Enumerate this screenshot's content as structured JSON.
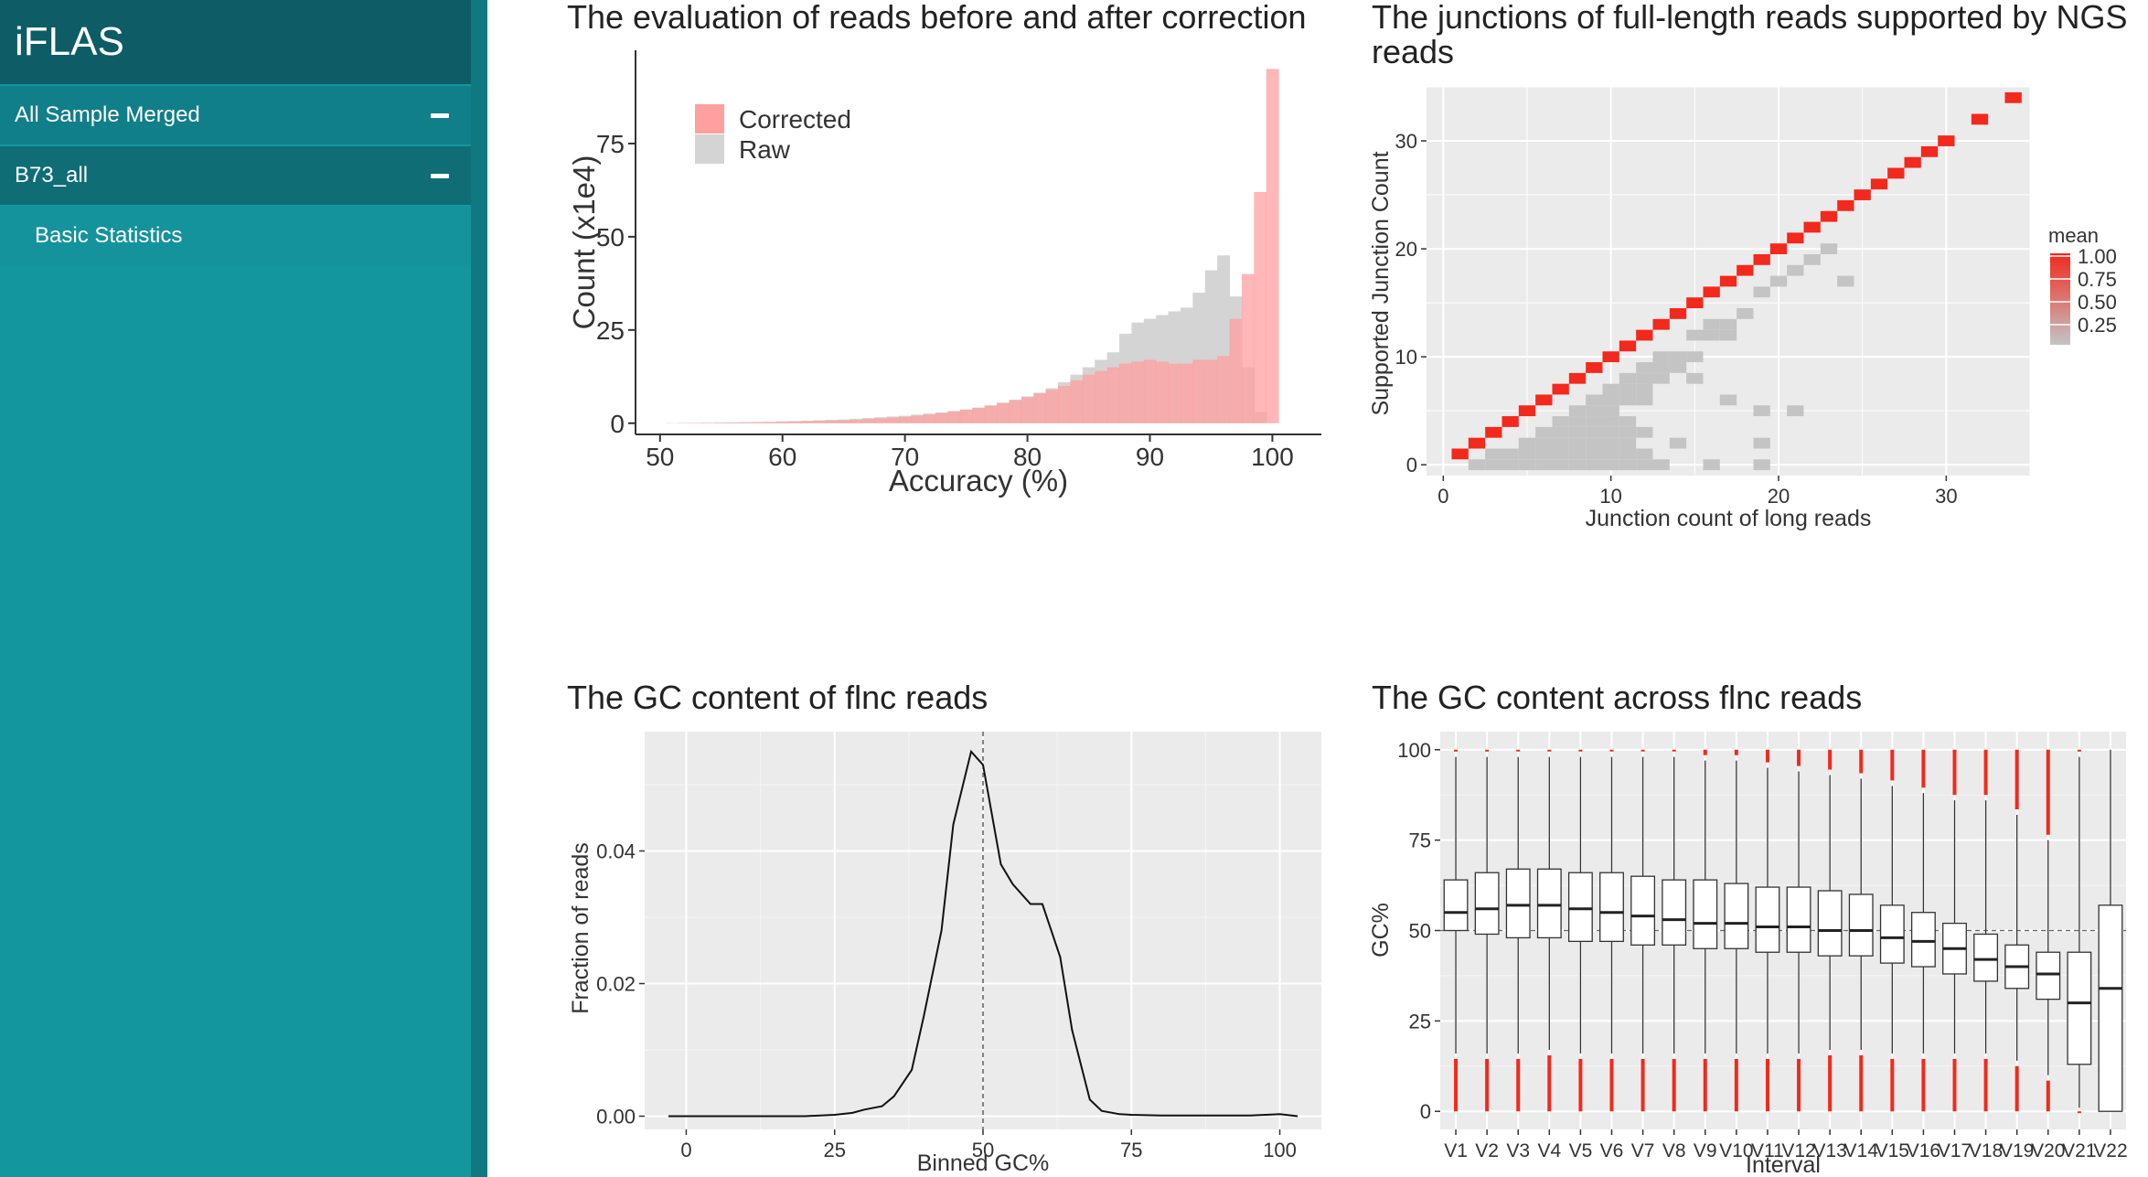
{
  "sidebar": {
    "brand": "iFLAS",
    "items": [
      {
        "label": "All Sample Merged",
        "icon": "minus-icon"
      },
      {
        "label": "B73_all",
        "icon": "minus-icon"
      },
      {
        "label": "Basic Statistics"
      }
    ]
  },
  "colors": {
    "sidebar": "#14969f",
    "accent": "#f2291c",
    "corrected": "#ff9f9f",
    "raw": "#d4d4d4"
  },
  "charts": {
    "accuracy": {
      "title_line1": "The evaluation of reads before and after correction"
    },
    "junction": {
      "title_line1": "The junctions of full-length reads supported by NGS",
      "title_line2": "reads"
    },
    "gc_hist": {
      "title_line1": "The GC content of flnc reads"
    },
    "gc_box": {
      "title_line1": "The GC content across flnc reads"
    }
  },
  "chart_data": [
    {
      "id": "accuracy",
      "type": "area",
      "title": "The evaluation of reads before and after correction",
      "xlabel": "Accuracy (%)",
      "ylabel": "Count (x1e4)",
      "xlim": [
        48,
        104
      ],
      "ylim": [
        -3,
        100
      ],
      "xticks": [
        50,
        60,
        70,
        80,
        90,
        100
      ],
      "yticks": [
        0,
        25,
        50,
        75
      ],
      "legend": {
        "position": "top-left",
        "entries": [
          "Corrected",
          "Raw"
        ]
      },
      "series": [
        {
          "name": "Raw",
          "color": "#d4d4d4",
          "x": [
            50,
            51,
            52,
            53,
            54,
            55,
            56,
            57,
            58,
            59,
            60,
            61,
            62,
            63,
            64,
            65,
            66,
            67,
            68,
            69,
            70,
            71,
            72,
            73,
            74,
            75,
            76,
            77,
            78,
            79,
            80,
            81,
            82,
            83,
            84,
            85,
            86,
            87,
            88,
            89,
            90,
            91,
            92,
            93,
            94,
            95,
            96,
            97,
            98,
            99,
            100
          ],
          "values": [
            0,
            0.05,
            0.1,
            0.1,
            0.15,
            0.2,
            0.25,
            0.3,
            0.35,
            0.4,
            0.5,
            0.6,
            0.7,
            0.8,
            0.9,
            1,
            1.2,
            1.4,
            1.6,
            1.8,
            2,
            2.3,
            2.6,
            2.9,
            3.3,
            3.7,
            4.2,
            4.8,
            5.5,
            6.3,
            7.2,
            8.2,
            9.4,
            11,
            13,
            15,
            17,
            19,
            24,
            27,
            28,
            29,
            30,
            31,
            35,
            41,
            45,
            34,
            15,
            3,
            0
          ]
        },
        {
          "name": "Corrected",
          "color": "#ff9f9f",
          "x": [
            50,
            51,
            52,
            53,
            54,
            55,
            56,
            57,
            58,
            59,
            60,
            61,
            62,
            63,
            64,
            65,
            66,
            67,
            68,
            69,
            70,
            71,
            72,
            73,
            74,
            75,
            76,
            77,
            78,
            79,
            80,
            81,
            82,
            83,
            84,
            85,
            86,
            87,
            88,
            89,
            90,
            91,
            92,
            93,
            94,
            95,
            96,
            97,
            98,
            99,
            100
          ],
          "values": [
            0,
            0.03,
            0.05,
            0.08,
            0.1,
            0.15,
            0.18,
            0.2,
            0.25,
            0.3,
            0.35,
            0.4,
            0.5,
            0.6,
            0.7,
            0.8,
            0.9,
            1.1,
            1.3,
            1.5,
            1.7,
            2,
            2.3,
            2.7,
            3.1,
            3.6,
            4.1,
            4.7,
            5.4,
            6.2,
            7,
            8,
            9,
            10,
            11.5,
            13,
            14,
            15,
            16,
            16.5,
            17,
            16.5,
            16,
            16,
            17,
            17,
            18,
            28,
            40,
            62,
            95
          ]
        }
      ]
    },
    {
      "id": "junction",
      "type": "heatmap",
      "title": "The junctions of full-length reads supported by NGS reads",
      "xlabel": "Junction count of long reads",
      "ylabel": "Supported Junction Count",
      "xlim": [
        -1,
        35
      ],
      "ylim": [
        -1,
        35
      ],
      "xticks": [
        0,
        10,
        20,
        30
      ],
      "yticks": [
        0,
        10,
        20,
        30
      ],
      "legend": {
        "title": "mean",
        "labels": [
          "1.00",
          "0.75",
          "0.50",
          "0.25"
        ],
        "position": "right"
      },
      "diagonal": [
        1,
        2,
        3,
        4,
        5,
        6,
        7,
        8,
        9,
        10,
        11,
        12,
        13,
        14,
        15,
        16,
        17,
        18,
        19,
        20,
        21,
        22,
        23,
        24,
        25,
        26,
        27,
        28,
        29,
        30
      ],
      "extra_high": [
        [
          32,
          32
        ],
        [
          34,
          34
        ]
      ],
      "grey_cells": [
        [
          2,
          0
        ],
        [
          3,
          0
        ],
        [
          4,
          0
        ],
        [
          5,
          0
        ],
        [
          6,
          0
        ],
        [
          7,
          0
        ],
        [
          8,
          0
        ],
        [
          9,
          0
        ],
        [
          10,
          0
        ],
        [
          11,
          0
        ],
        [
          12,
          0
        ],
        [
          13,
          0
        ],
        [
          3,
          1
        ],
        [
          4,
          1
        ],
        [
          5,
          1
        ],
        [
          6,
          1
        ],
        [
          7,
          1
        ],
        [
          8,
          1
        ],
        [
          9,
          1
        ],
        [
          10,
          1
        ],
        [
          11,
          1
        ],
        [
          12,
          1
        ],
        [
          5,
          2
        ],
        [
          6,
          2
        ],
        [
          7,
          2
        ],
        [
          8,
          2
        ],
        [
          9,
          2
        ],
        [
          10,
          2
        ],
        [
          11,
          2
        ],
        [
          6,
          3
        ],
        [
          7,
          3
        ],
        [
          8,
          3
        ],
        [
          9,
          3
        ],
        [
          10,
          3
        ],
        [
          11,
          3
        ],
        [
          12,
          3
        ],
        [
          7,
          4
        ],
        [
          8,
          4
        ],
        [
          9,
          4
        ],
        [
          10,
          4
        ],
        [
          11,
          4
        ],
        [
          8,
          5
        ],
        [
          9,
          5
        ],
        [
          10,
          5
        ],
        [
          9,
          6
        ],
        [
          10,
          6
        ],
        [
          11,
          6
        ],
        [
          12,
          6
        ],
        [
          10,
          7
        ],
        [
          11,
          7
        ],
        [
          12,
          7
        ],
        [
          11,
          8
        ],
        [
          12,
          8
        ],
        [
          13,
          8
        ],
        [
          12,
          9
        ],
        [
          13,
          9
        ],
        [
          14,
          9
        ],
        [
          13,
          10
        ],
        [
          14,
          10
        ],
        [
          15,
          10
        ],
        [
          15,
          12
        ],
        [
          16,
          12
        ],
        [
          17,
          12
        ],
        [
          16,
          13
        ],
        [
          17,
          13
        ],
        [
          18,
          14
        ],
        [
          19,
          16
        ],
        [
          20,
          17
        ],
        [
          21,
          18
        ],
        [
          22,
          19
        ],
        [
          23,
          20
        ],
        [
          14,
          2
        ],
        [
          16,
          0
        ],
        [
          19,
          2
        ],
        [
          19,
          0
        ],
        [
          15,
          8
        ],
        [
          17,
          6
        ],
        [
          19,
          5
        ],
        [
          21,
          5
        ],
        [
          24,
          17
        ]
      ]
    },
    {
      "id": "gc_hist",
      "type": "line",
      "title": "The GC content of flnc reads",
      "xlabel": "Binned GC%",
      "ylabel": "Fraction of reads",
      "xlim": [
        -7,
        107
      ],
      "ylim": [
        -0.002,
        0.058
      ],
      "xticks": [
        0,
        25,
        50,
        75,
        100
      ],
      "yticks": [
        0.0,
        0.02,
        0.04
      ],
      "vline": 50,
      "x": [
        -3,
        0,
        5,
        10,
        15,
        20,
        25,
        28,
        30,
        33,
        35,
        38,
        40,
        43,
        45,
        48,
        50,
        53,
        55,
        58,
        60,
        63,
        65,
        68,
        70,
        73,
        75,
        80,
        85,
        90,
        95,
        100,
        103
      ],
      "values": [
        0,
        0,
        0,
        0,
        0,
        0,
        0.0002,
        0.0005,
        0.001,
        0.0015,
        0.003,
        0.007,
        0.015,
        0.028,
        0.044,
        0.055,
        0.053,
        0.038,
        0.035,
        0.032,
        0.032,
        0.024,
        0.013,
        0.0025,
        0.0008,
        0.0003,
        0.0002,
        0.0001,
        0.0001,
        0.0001,
        0.0001,
        0.0003,
        0
      ]
    },
    {
      "id": "gc_box",
      "type": "box",
      "title": "The GC content across flnc reads",
      "xlabel": "Interval",
      "ylabel": "GC%",
      "ylim": [
        -5,
        105
      ],
      "yticks": [
        0,
        25,
        50,
        75,
        100
      ],
      "hline": 50,
      "categories": [
        "V1",
        "V2",
        "V3",
        "V4",
        "V5",
        "V6",
        "V7",
        "V8",
        "V9",
        "V10",
        "V11",
        "V12",
        "V13",
        "V14",
        "V15",
        "V16",
        "V17",
        "V18",
        "V19",
        "V20",
        "V21",
        "V22"
      ],
      "boxes": [
        {
          "q1": 50,
          "median": 55,
          "q3": 64,
          "whisker_low": 16,
          "whisker_high": 98
        },
        {
          "q1": 49,
          "median": 56,
          "q3": 66,
          "whisker_low": 16,
          "whisker_high": 98
        },
        {
          "q1": 48,
          "median": 57,
          "q3": 67,
          "whisker_low": 16,
          "whisker_high": 98
        },
        {
          "q1": 48,
          "median": 57,
          "q3": 67,
          "whisker_low": 17,
          "whisker_high": 98
        },
        {
          "q1": 47,
          "median": 56,
          "q3": 66,
          "whisker_low": 16,
          "whisker_high": 98
        },
        {
          "q1": 47,
          "median": 55,
          "q3": 66,
          "whisker_low": 16,
          "whisker_high": 98
        },
        {
          "q1": 46,
          "median": 54,
          "q3": 65,
          "whisker_low": 16,
          "whisker_high": 98
        },
        {
          "q1": 46,
          "median": 53,
          "q3": 64,
          "whisker_low": 16,
          "whisker_high": 98
        },
        {
          "q1": 45,
          "median": 52,
          "q3": 64,
          "whisker_low": 16,
          "whisker_high": 97
        },
        {
          "q1": 45,
          "median": 52,
          "q3": 63,
          "whisker_low": 16,
          "whisker_high": 97
        },
        {
          "q1": 44,
          "median": 51,
          "q3": 62,
          "whisker_low": 16,
          "whisker_high": 95
        },
        {
          "q1": 44,
          "median": 51,
          "q3": 62,
          "whisker_low": 16,
          "whisker_high": 94
        },
        {
          "q1": 43,
          "median": 50,
          "q3": 61,
          "whisker_low": 17,
          "whisker_high": 93
        },
        {
          "q1": 43,
          "median": 50,
          "q3": 60,
          "whisker_low": 17,
          "whisker_high": 92
        },
        {
          "q1": 41,
          "median": 48,
          "q3": 57,
          "whisker_low": 16,
          "whisker_high": 90
        },
        {
          "q1": 40,
          "median": 47,
          "q3": 55,
          "whisker_low": 16,
          "whisker_high": 88
        },
        {
          "q1": 38,
          "median": 45,
          "q3": 52,
          "whisker_low": 16,
          "whisker_high": 86
        },
        {
          "q1": 36,
          "median": 42,
          "q3": 49,
          "whisker_low": 16,
          "whisker_high": 86
        },
        {
          "q1": 34,
          "median": 40,
          "q3": 46,
          "whisker_low": 14,
          "whisker_high": 82
        },
        {
          "q1": 31,
          "median": 38,
          "q3": 44,
          "whisker_low": 10,
          "whisker_high": 75
        },
        {
          "q1": 13,
          "median": 30,
          "q3": 44,
          "whisker_low": 1,
          "whisker_high": 98
        },
        {
          "q1": 0,
          "median": 34,
          "q3": 57,
          "whisker_low": 0,
          "whisker_high": 100
        }
      ]
    }
  ]
}
